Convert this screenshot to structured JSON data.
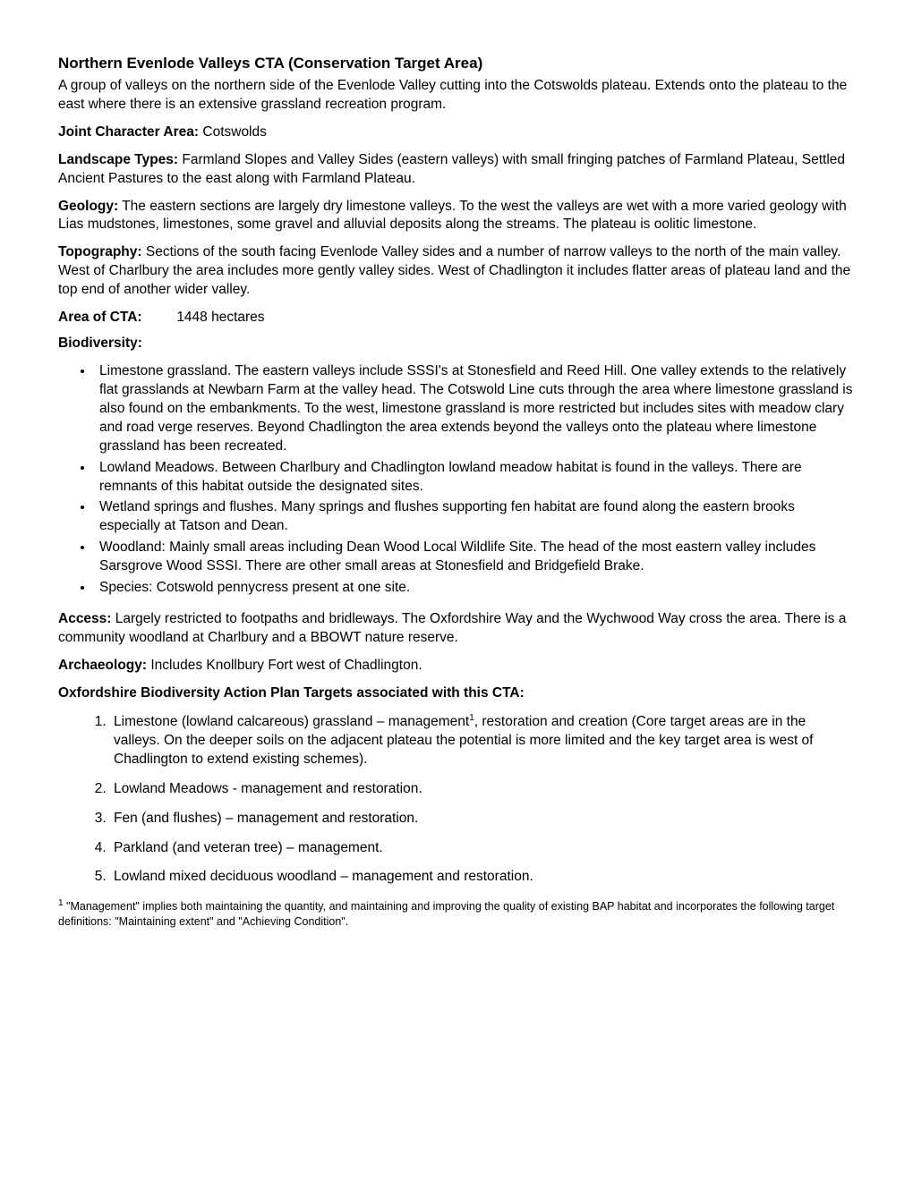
{
  "title": "Northern Evenlode Valleys CTA (Conservation Target Area)",
  "intro": "A group of valleys on the northern side of the Evenlode Valley cutting into the Cotswolds plateau. Extends onto the plateau to the east where there is an extensive grassland recreation program.",
  "joint_character_area": {
    "label": "Joint Character Area:",
    "value": "Cotswolds"
  },
  "landscape_types": {
    "label": "Landscape Types:",
    "value": "Farmland Slopes and Valley Sides (eastern valleys) with small fringing patches of Farmland Plateau, Settled Ancient Pastures to the east along with Farmland Plateau."
  },
  "geology": {
    "label": "Geology:",
    "value": "The eastern sections are largely dry limestone valleys. To the west the valleys are wet with a more varied geology with Lias mudstones, limestones, some gravel and alluvial deposits along the streams. The plateau is oolitic limestone."
  },
  "topography": {
    "label": "Topography:",
    "value": "Sections of the south facing Evenlode Valley sides and a number of narrow valleys to the north of the main valley. West of Charlbury the area includes more gently valley sides. West of Chadlington it includes flatter areas of plateau land and the top end of another wider valley."
  },
  "area_of_cta": {
    "label": "Area of CTA:",
    "value": "1448 hectares"
  },
  "biodiversity": {
    "label": "Biodiversity:",
    "items": [
      "Limestone grassland. The eastern valleys include SSSI's at Stonesfield and Reed Hill. One valley extends to the relatively flat grasslands at Newbarn Farm at the valley head. The Cotswold Line cuts through the area where limestone grassland is also found on the embankments. To the west, limestone grassland is more restricted but includes sites with meadow clary and road verge reserves. Beyond Chadlington the area extends beyond the valleys onto the plateau where limestone grassland has been recreated.",
      "Lowland Meadows. Between Charlbury and Chadlington lowland meadow habitat is found in the valleys. There are remnants of this habitat outside the designated sites.",
      "Wetland springs and flushes. Many springs and flushes supporting fen habitat are found along the eastern brooks especially at Tatson and Dean.",
      "Woodland: Mainly small areas including Dean Wood Local Wildlife Site. The head of the most eastern valley includes Sarsgrove Wood SSSI. There are other small areas at Stonesfield and Bridgefield Brake.",
      "Species: Cotswold pennycress present at one site."
    ]
  },
  "access": {
    "label": "Access:",
    "value": "Largely restricted to footpaths and bridleways. The Oxfordshire Way and the Wychwood Way cross the area. There is a community woodland at Charlbury and a BBOWT nature reserve."
  },
  "archaeology": {
    "label": "Archaeology:",
    "value": "Includes Knollbury Fort west of Chadlington."
  },
  "bap_targets": {
    "label": "Oxfordshire Biodiversity Action Plan Targets associated with this CTA:",
    "items": [
      {
        "pre": "Limestone (lowland calcareous) grassland – management",
        "sup": "1",
        "post": ", restoration and creation (Core target areas are in the valleys. On the deeper soils on the adjacent plateau the potential is more limited and the key target area is west of Chadlington to extend existing schemes)."
      },
      {
        "pre": "Lowland Meadows - management and restoration.",
        "sup": "",
        "post": ""
      },
      {
        "pre": "Fen (and flushes) – management and restoration.",
        "sup": "",
        "post": ""
      },
      {
        "pre": "Parkland (and veteran tree) – management.",
        "sup": "",
        "post": ""
      },
      {
        "pre": "Lowland mixed deciduous woodland – management and restoration.",
        "sup": "",
        "post": ""
      }
    ]
  },
  "footnote": {
    "marker": "1",
    "text": " \"Management\" implies both maintaining the quantity, and maintaining and improving the quality of existing BAP habitat and incorporates the following target definitions: \"Maintaining extent\" and \"Achieving Condition\"."
  }
}
